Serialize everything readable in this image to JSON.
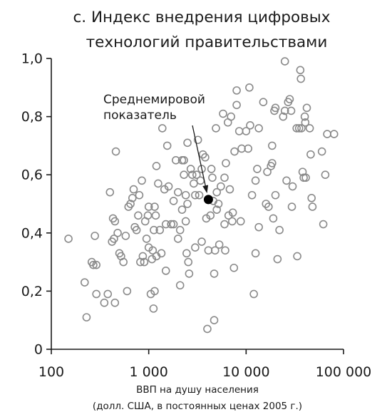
{
  "chart_data": {
    "type": "scatter",
    "title_lines": [
      "c. Индекс внедрения цифровых",
      "технологий правительствами"
    ],
    "xlabel_lines": [
      "ВВП на душу населения",
      "(долл. США, в постоянных ценах 2005 г.)"
    ],
    "ylabel": "",
    "x_scale": "log",
    "xlim": [
      100,
      100000
    ],
    "ylim": [
      0,
      1.0
    ],
    "x_ticks": [
      {
        "value": 100,
        "label": "100"
      },
      {
        "value": 1000,
        "label": "1 000"
      },
      {
        "value": 10000,
        "label": "10 000"
      },
      {
        "value": 100000,
        "label": "100 000"
      }
    ],
    "y_ticks": [
      {
        "value": 0,
        "label": "0"
      },
      {
        "value": 0.2,
        "label": "0,2"
      },
      {
        "value": 0.4,
        "label": "0,4"
      },
      {
        "value": 0.6,
        "label": "0,6"
      },
      {
        "value": 0.8,
        "label": "0,8"
      },
      {
        "value": 1.0,
        "label": "1,0"
      }
    ],
    "grid": false,
    "legend": "none",
    "marker_color": "#8a8a8a",
    "highlight_color": "#000000",
    "annotation": {
      "lines": [
        "Среднемировой",
        "показатель"
      ],
      "x": 4100,
      "y": 0.515
    },
    "points": [
      [
        150,
        0.38
      ],
      [
        220,
        0.23
      ],
      [
        230,
        0.11
      ],
      [
        260,
        0.3
      ],
      [
        270,
        0.29
      ],
      [
        280,
        0.39
      ],
      [
        290,
        0.29
      ],
      [
        290,
        0.19
      ],
      [
        350,
        0.16
      ],
      [
        380,
        0.19
      ],
      [
        400,
        0.54
      ],
      [
        420,
        0.37
      ],
      [
        430,
        0.45
      ],
      [
        440,
        0.38
      ],
      [
        450,
        0.44
      ],
      [
        450,
        0.16
      ],
      [
        460,
        0.68
      ],
      [
        480,
        0.4
      ],
      [
        500,
        0.33
      ],
      [
        520,
        0.32
      ],
      [
        550,
        0.3
      ],
      [
        580,
        0.39
      ],
      [
        600,
        0.2
      ],
      [
        620,
        0.49
      ],
      [
        650,
        0.5
      ],
      [
        680,
        0.52
      ],
      [
        700,
        0.55
      ],
      [
        720,
        0.42
      ],
      [
        750,
        0.41
      ],
      [
        780,
        0.46
      ],
      [
        800,
        0.53
      ],
      [
        820,
        0.3
      ],
      [
        850,
        0.58
      ],
      [
        870,
        0.32
      ],
      [
        900,
        0.3
      ],
      [
        920,
        0.44
      ],
      [
        950,
        0.38
      ],
      [
        980,
        0.46
      ],
      [
        1000,
        0.35
      ],
      [
        1000,
        0.49
      ],
      [
        1050,
        0.19
      ],
      [
        1080,
        0.31
      ],
      [
        1100,
        0.34
      ],
      [
        1120,
        0.14
      ],
      [
        1130,
        0.41
      ],
      [
        1150,
        0.2
      ],
      [
        1150,
        0.49
      ],
      [
        1180,
        0.46
      ],
      [
        1200,
        0.63
      ],
      [
        1200,
        0.32
      ],
      [
        1250,
        0.57
      ],
      [
        1300,
        0.41
      ],
      [
        1350,
        0.33
      ],
      [
        1380,
        0.76
      ],
      [
        1450,
        0.55
      ],
      [
        1500,
        0.43
      ],
      [
        1500,
        0.27
      ],
      [
        1550,
        0.7
      ],
      [
        1600,
        0.56
      ],
      [
        1700,
        0.43
      ],
      [
        1800,
        0.51
      ],
      [
        1800,
        0.43
      ],
      [
        1900,
        0.65
      ],
      [
        2000,
        0.54
      ],
      [
        2000,
        0.38
      ],
      [
        2100,
        0.22
      ],
      [
        2100,
        0.41
      ],
      [
        2200,
        0.65
      ],
      [
        2200,
        0.48
      ],
      [
        2300,
        0.65
      ],
      [
        2300,
        0.6
      ],
      [
        2400,
        0.53
      ],
      [
        2400,
        0.44
      ],
      [
        2450,
        0.33
      ],
      [
        2500,
        0.71
      ],
      [
        2500,
        0.5
      ],
      [
        2550,
        0.3
      ],
      [
        2600,
        0.26
      ],
      [
        2700,
        0.62
      ],
      [
        2800,
        0.6
      ],
      [
        2900,
        0.57
      ],
      [
        3000,
        0.53
      ],
      [
        3000,
        0.35
      ],
      [
        3100,
        0.6
      ],
      [
        3200,
        0.72
      ],
      [
        3300,
        0.53
      ],
      [
        3400,
        0.58
      ],
      [
        3500,
        0.62
      ],
      [
        3500,
        0.37
      ],
      [
        3600,
        0.67
      ],
      [
        3800,
        0.66
      ],
      [
        3900,
        0.45
      ],
      [
        4000,
        0.07
      ],
      [
        4100,
        0.34
      ],
      [
        4300,
        0.46
      ],
      [
        4400,
        0.62
      ],
      [
        4500,
        0.59
      ],
      [
        4600,
        0.51
      ],
      [
        4700,
        0.26
      ],
      [
        4700,
        0.1
      ],
      [
        4800,
        0.34
      ],
      [
        4900,
        0.76
      ],
      [
        5000,
        0.54
      ],
      [
        5000,
        0.48
      ],
      [
        5200,
        0.5
      ],
      [
        5300,
        0.36
      ],
      [
        5500,
        0.56
      ],
      [
        5800,
        0.81
      ],
      [
        6000,
        0.59
      ],
      [
        6000,
        0.43
      ],
      [
        6100,
        0.34
      ],
      [
        6200,
        0.64
      ],
      [
        6500,
        0.78
      ],
      [
        6600,
        0.46
      ],
      [
        6800,
        0.55
      ],
      [
        7000,
        0.8
      ],
      [
        7200,
        0.44
      ],
      [
        7300,
        0.47
      ],
      [
        7500,
        0.28
      ],
      [
        7600,
        0.68
      ],
      [
        8000,
        0.84
      ],
      [
        8000,
        0.89
      ],
      [
        8500,
        0.75
      ],
      [
        8800,
        0.44
      ],
      [
        9000,
        0.69
      ],
      [
        10000,
        0.75
      ],
      [
        10500,
        0.69
      ],
      [
        10800,
        0.9
      ],
      [
        11000,
        0.77
      ],
      [
        11500,
        0.53
      ],
      [
        12000,
        0.19
      ],
      [
        12500,
        0.58
      ],
      [
        12500,
        0.33
      ],
      [
        13000,
        0.62
      ],
      [
        13500,
        0.42
      ],
      [
        13500,
        0.76
      ],
      [
        15000,
        0.85
      ],
      [
        16000,
        0.5
      ],
      [
        16500,
        0.61
      ],
      [
        17000,
        0.49
      ],
      [
        18000,
        0.63
      ],
      [
        18500,
        0.7
      ],
      [
        18500,
        0.64
      ],
      [
        19000,
        0.45
      ],
      [
        19500,
        0.82
      ],
      [
        20000,
        0.83
      ],
      [
        20000,
        0.53
      ],
      [
        21000,
        0.31
      ],
      [
        22000,
        0.41
      ],
      [
        24000,
        0.8
      ],
      [
        25000,
        0.99
      ],
      [
        25000,
        0.82
      ],
      [
        26000,
        0.58
      ],
      [
        27000,
        0.85
      ],
      [
        28000,
        0.86
      ],
      [
        29000,
        0.82
      ],
      [
        29500,
        0.49
      ],
      [
        30000,
        0.56
      ],
      [
        33000,
        0.76
      ],
      [
        33500,
        0.32
      ],
      [
        35000,
        0.76
      ],
      [
        36000,
        0.96
      ],
      [
        36500,
        0.93
      ],
      [
        37000,
        0.76
      ],
      [
        38000,
        0.61
      ],
      [
        39000,
        0.59
      ],
      [
        40000,
        0.8
      ],
      [
        40500,
        0.78
      ],
      [
        41000,
        0.59
      ],
      [
        42000,
        0.83
      ],
      [
        45000,
        0.76
      ],
      [
        46000,
        0.67
      ],
      [
        47000,
        0.52
      ],
      [
        48000,
        0.49
      ],
      [
        60000,
        0.68
      ],
      [
        62000,
        0.43
      ],
      [
        65000,
        0.6
      ],
      [
        68000,
        0.74
      ],
      [
        80000,
        0.74
      ]
    ]
  }
}
